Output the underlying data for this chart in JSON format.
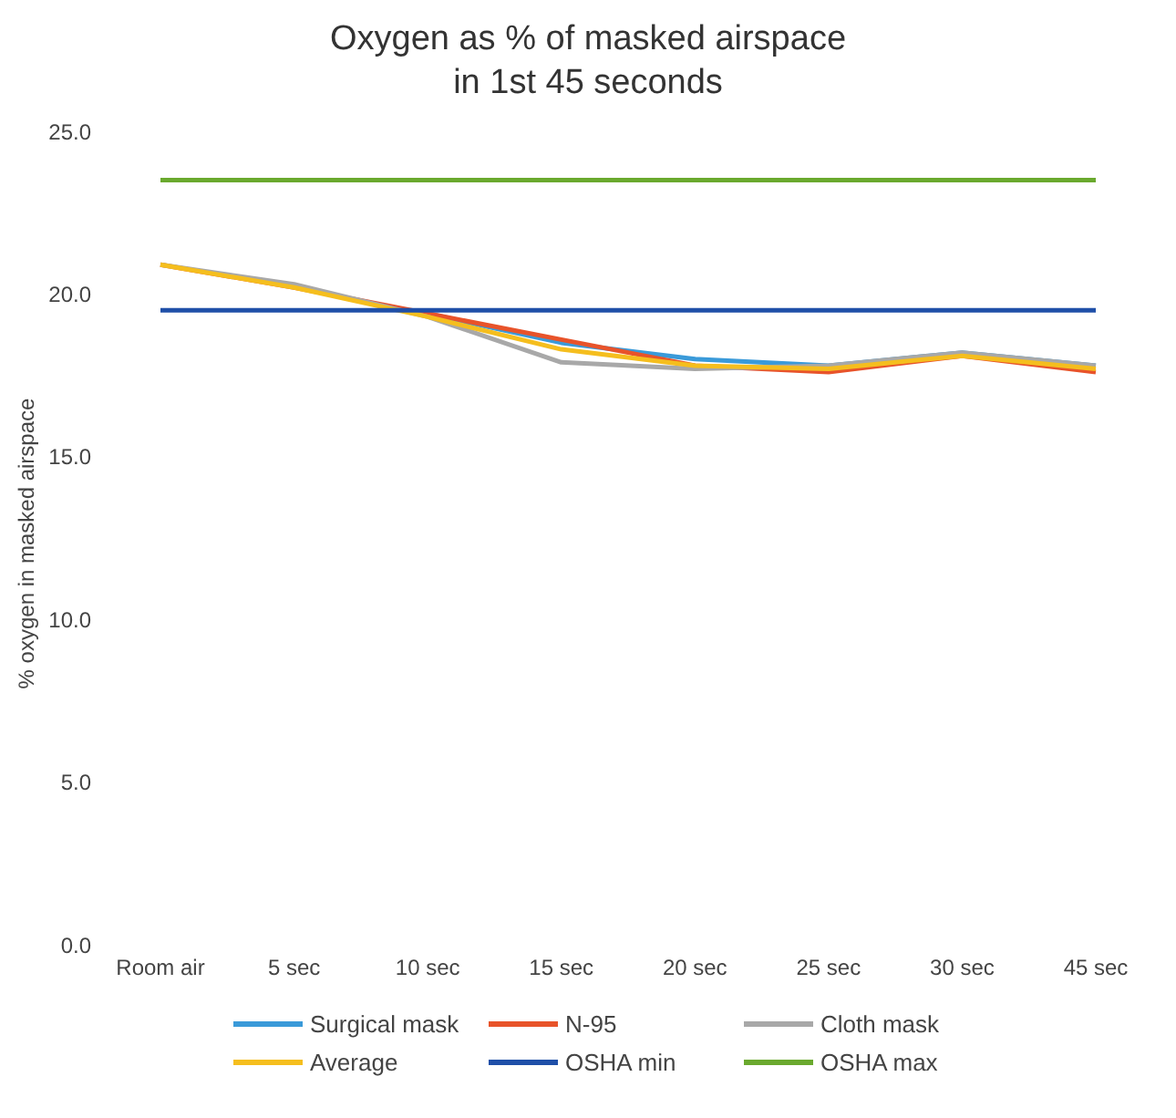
{
  "chart_data": {
    "type": "line",
    "title": "Oxygen as % of masked airspace\nin 1st 45 seconds",
    "ylabel": "% oxygen in masked airspace",
    "categories": [
      "Room air",
      "5 sec",
      "10 sec",
      "15 sec",
      "20 sec",
      "25 sec",
      "30 sec",
      "45 sec"
    ],
    "series": [
      {
        "name": "Surgical mask",
        "color": "#3a9ad9",
        "values": [
          null,
          null,
          19.4,
          18.5,
          18.0,
          17.8,
          18.2,
          17.8
        ]
      },
      {
        "name": "N-95",
        "color": "#e8532a",
        "values": [
          20.9,
          20.2,
          19.4,
          18.6,
          17.8,
          17.6,
          18.1,
          17.6
        ]
      },
      {
        "name": "Cloth mask",
        "color": "#a8a8a8",
        "values": [
          20.9,
          20.3,
          19.3,
          17.9,
          17.7,
          17.8,
          18.2,
          17.8
        ]
      },
      {
        "name": "Average",
        "color": "#f5be1e",
        "values": [
          20.9,
          20.2,
          19.3,
          18.3,
          17.8,
          17.7,
          18.1,
          17.7
        ]
      },
      {
        "name": "OSHA min",
        "color": "#1f4fa8",
        "values": [
          19.5,
          19.5,
          19.5,
          19.5,
          19.5,
          19.5,
          19.5,
          19.5
        ]
      },
      {
        "name": "OSHA max",
        "color": "#6aa92e",
        "values": [
          23.5,
          23.5,
          23.5,
          23.5,
          23.5,
          23.5,
          23.5,
          23.5
        ]
      }
    ],
    "ylim": [
      0,
      25
    ],
    "yticks": [
      {
        "value": 0,
        "label": "0.0"
      },
      {
        "value": 5,
        "label": "5.0"
      },
      {
        "value": 10,
        "label": "10.0"
      },
      {
        "value": 15,
        "label": "15.0"
      },
      {
        "value": 20,
        "label": "20.0"
      },
      {
        "value": 25,
        "label": "25.0"
      }
    ],
    "legend": "bottom"
  }
}
